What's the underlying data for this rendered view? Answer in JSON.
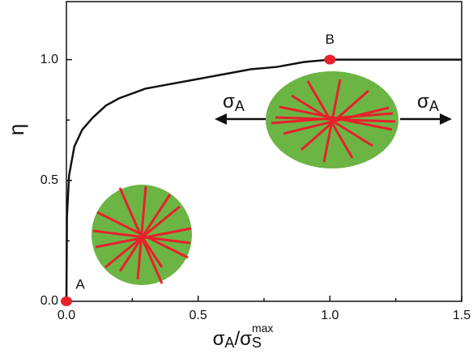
{
  "chart_data": {
    "type": "line",
    "xlabel": {
      "sigma": "σ",
      "sub1": "A",
      "slash": "/σ",
      "sub2": "S",
      "sup": "max"
    },
    "ylabel": "η",
    "x": [
      0,
      0.002,
      0.01,
      0.03,
      0.06,
      0.1,
      0.15,
      0.2,
      0.3,
      0.4,
      0.5,
      0.6,
      0.7,
      0.8,
      0.9,
      1.0,
      1.5
    ],
    "series": [
      {
        "color": "#111111",
        "values": [
          0,
          0.35,
          0.52,
          0.64,
          0.71,
          0.76,
          0.81,
          0.84,
          0.88,
          0.9,
          0.92,
          0.94,
          0.96,
          0.97,
          0.99,
          1.0,
          1.0
        ]
      }
    ],
    "points": [
      {
        "label": "A",
        "x": 0,
        "y": 0,
        "color": "#e8202a"
      },
      {
        "label": "B",
        "x": 1.0,
        "y": 1.0,
        "color": "#e8202a"
      }
    ],
    "arrow_label": {
      "base": "σ",
      "sub": "A"
    },
    "xlim": [
      0,
      1.5
    ],
    "ylim": [
      0,
      1.24
    ],
    "xticks": [
      {
        "value": 0,
        "label": "0.0"
      },
      {
        "value": 0.5,
        "label": "0.5"
      },
      {
        "value": 1.0,
        "label": "1.0"
      },
      {
        "value": 1.5,
        "label": "1.5"
      }
    ],
    "yticks": [
      {
        "value": 0,
        "label": "0.0"
      },
      {
        "value": 0.5,
        "label": "0.5"
      },
      {
        "value": 1.0,
        "label": "1.0"
      }
    ]
  }
}
